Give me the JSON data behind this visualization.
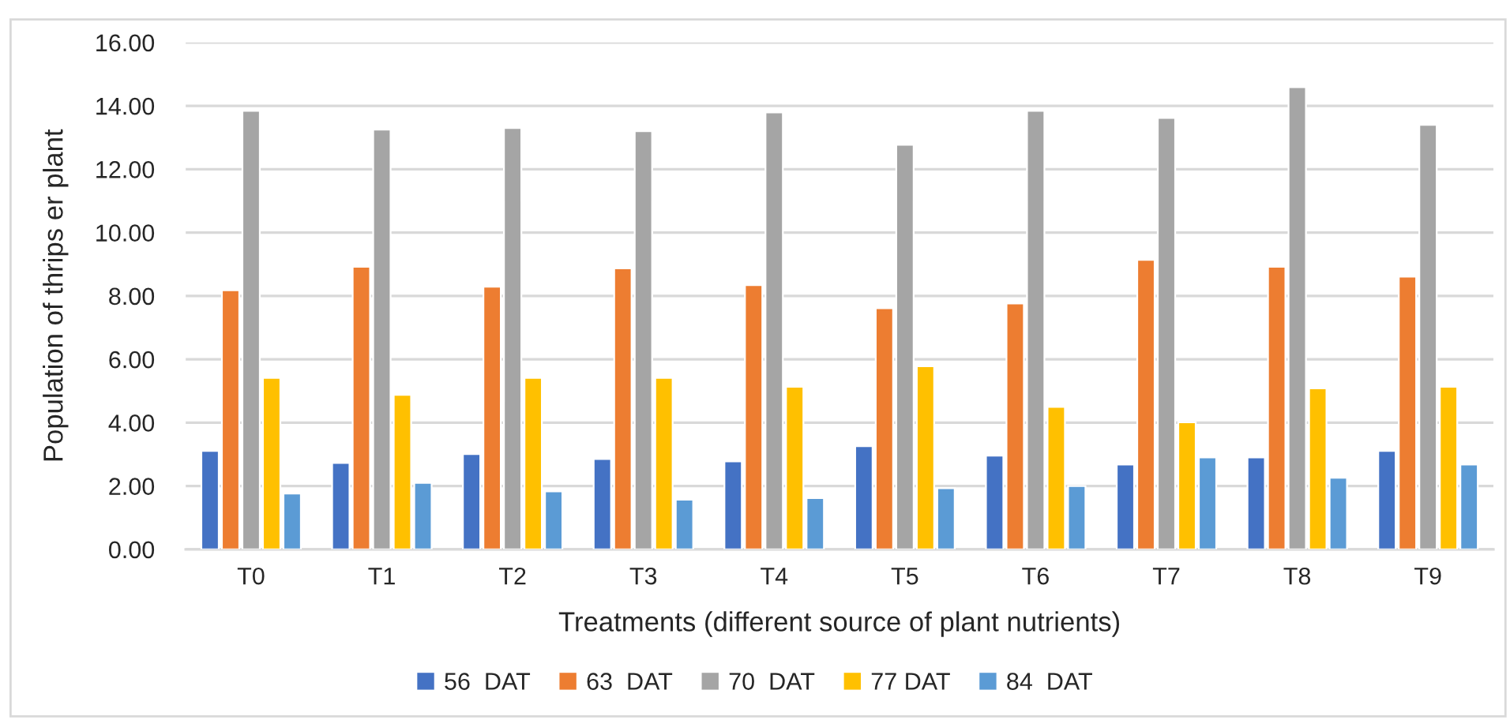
{
  "chart_data": {
    "type": "bar",
    "xlabel": "Treatments (different source of plant nutrients)",
    "ylabel": "Population of thrips er plant",
    "categories": [
      "T0",
      "T1",
      "T2",
      "T3",
      "T4",
      "T5",
      "T6",
      "T7",
      "T8",
      "T9"
    ],
    "series": [
      {
        "name": "56  DAT",
        "color": "#4472c4",
        "values": [
          3.11,
          2.73,
          3.01,
          2.85,
          2.78,
          3.26,
          2.96,
          2.68,
          2.9,
          3.11
        ]
      },
      {
        "name": "63  DAT",
        "color": "#ed7d31",
        "values": [
          8.18,
          8.92,
          8.29,
          8.87,
          8.34,
          7.61,
          7.76,
          9.14,
          8.92,
          8.61
        ]
      },
      {
        "name": "70  DAT",
        "color": "#a5a5a5",
        "values": [
          13.84,
          13.25,
          13.3,
          13.2,
          13.79,
          12.77,
          13.84,
          13.62,
          14.59,
          13.4
        ]
      },
      {
        "name": "77 DAT",
        "color": "#ffc000",
        "values": [
          5.41,
          4.88,
          5.41,
          5.41,
          5.13,
          5.78,
          4.5,
          4.01,
          5.08,
          5.13
        ]
      },
      {
        "name": "84  DAT",
        "color": "#5b9bd5",
        "values": [
          1.76,
          2.1,
          1.83,
          1.57,
          1.62,
          1.93,
          2.0,
          2.9,
          2.26,
          2.68
        ]
      }
    ],
    "ylim": [
      0,
      16
    ],
    "yticks": [
      {
        "value": 0,
        "label": "0.00"
      },
      {
        "value": 2,
        "label": "2.00"
      },
      {
        "value": 4,
        "label": "4.00"
      },
      {
        "value": 6,
        "label": "6.00"
      },
      {
        "value": 8,
        "label": "8.00"
      },
      {
        "value": 10,
        "label": "10.00"
      },
      {
        "value": 12,
        "label": "12.00"
      },
      {
        "value": 14,
        "label": "14.00"
      },
      {
        "value": 16,
        "label": "16.00"
      }
    ],
    "grid": "y",
    "legend": "bottom"
  }
}
